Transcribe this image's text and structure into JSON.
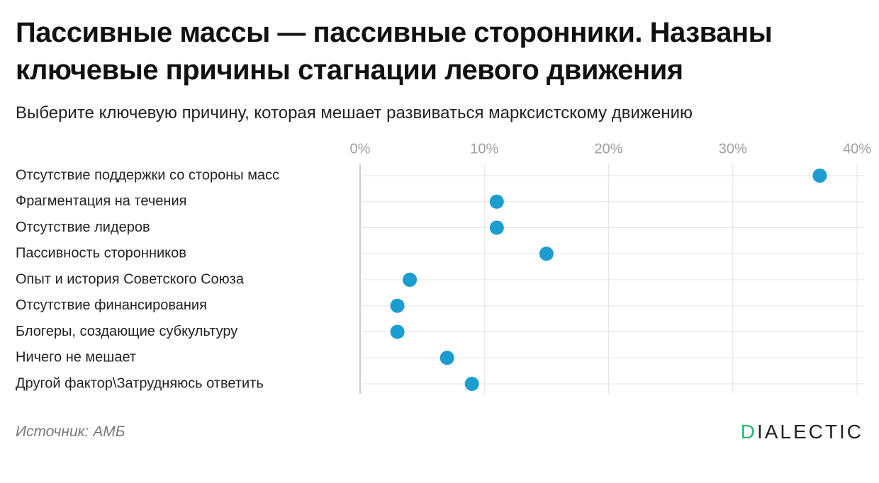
{
  "chart_data": {
    "type": "dot",
    "title": "Пассивные массы — пассивные сторонники. Названы ключевые причины стагнации левого движения",
    "subtitle": "Выберите ключевую причину, которая мешает развиваться марксистскому движению",
    "categories": [
      "Отсутствие поддержки со стороны масс",
      "Фрагментация на течения",
      "Отсутствие лидеров",
      "Пассивность сторонников",
      "Опыт и история Советского Союза",
      "Отсутствие финансирования",
      "Блогеры, создающие субкультуру",
      "Ничего не мешает",
      "Другой фактор\\Затрудняюсь ответить"
    ],
    "values": [
      37,
      11,
      11,
      15,
      4,
      3,
      3,
      7,
      9
    ],
    "color": "#1b9dcf",
    "xlim": [
      0,
      40
    ],
    "xticks": [
      {
        "value": 0,
        "label": "0%"
      },
      {
        "value": 10,
        "label": "10%"
      },
      {
        "value": 20,
        "label": "20%"
      },
      {
        "value": 30,
        "label": "30%"
      },
      {
        "value": 40,
        "label": "40%"
      }
    ],
    "grid": true,
    "source": "Источник: АМБ",
    "logo": "DIALECTIC"
  }
}
